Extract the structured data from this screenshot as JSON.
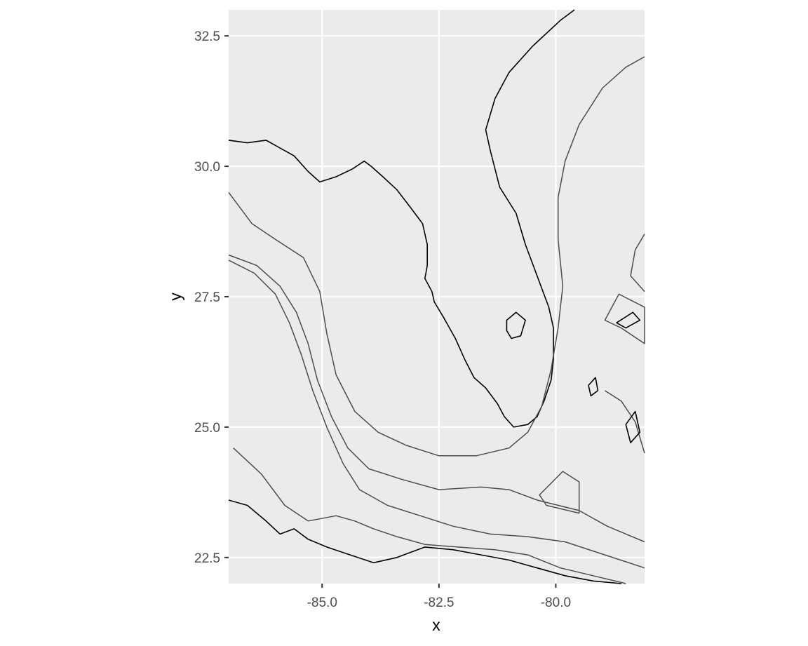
{
  "chart_data": {
    "type": "map-contour",
    "xlabel": "x",
    "ylabel": "y",
    "xlim": [
      -87.0,
      -78.1
    ],
    "ylim": [
      22.0,
      33.0
    ],
    "x_ticks": [
      {
        "value": -85.0,
        "label": "-85.0"
      },
      {
        "value": -82.5,
        "label": "-82.5"
      },
      {
        "value": -80.0,
        "label": "-80.0"
      }
    ],
    "y_ticks": [
      {
        "value": 22.5,
        "label": "22.5"
      },
      {
        "value": 25.0,
        "label": "25.0"
      },
      {
        "value": 27.5,
        "label": "27.5"
      },
      {
        "value": 30.0,
        "label": "30.0"
      },
      {
        "value": 32.5,
        "label": "32.5"
      }
    ],
    "grid": true,
    "colors": {
      "panel": "#ebebeb",
      "gridline": "#ffffff",
      "coastline": "#000000",
      "contour": "#4d4d4d"
    },
    "features": [
      {
        "name": "florida-coastline",
        "kind": "coast",
        "coords": [
          [
            -87.0,
            30.5
          ],
          [
            -86.6,
            30.45
          ],
          [
            -86.2,
            30.5
          ],
          [
            -85.9,
            30.35
          ],
          [
            -85.6,
            30.2
          ],
          [
            -85.3,
            29.9
          ],
          [
            -85.05,
            29.7
          ],
          [
            -84.7,
            29.8
          ],
          [
            -84.35,
            29.95
          ],
          [
            -84.1,
            30.1
          ],
          [
            -83.95,
            30.0
          ],
          [
            -83.7,
            29.8
          ],
          [
            -83.4,
            29.55
          ],
          [
            -83.1,
            29.2
          ],
          [
            -82.85,
            28.9
          ],
          [
            -82.75,
            28.5
          ],
          [
            -82.75,
            28.1
          ],
          [
            -82.8,
            27.85
          ],
          [
            -82.65,
            27.6
          ],
          [
            -82.6,
            27.4
          ],
          [
            -82.4,
            27.1
          ],
          [
            -82.15,
            26.7
          ],
          [
            -81.95,
            26.3
          ],
          [
            -81.75,
            25.95
          ],
          [
            -81.5,
            25.75
          ],
          [
            -81.25,
            25.45
          ],
          [
            -81.1,
            25.2
          ],
          [
            -80.9,
            25.0
          ],
          [
            -80.6,
            25.05
          ],
          [
            -80.4,
            25.2
          ],
          [
            -80.25,
            25.5
          ],
          [
            -80.1,
            25.9
          ],
          [
            -80.05,
            26.3
          ],
          [
            -80.05,
            26.9
          ],
          [
            -80.15,
            27.3
          ],
          [
            -80.4,
            27.9
          ],
          [
            -80.65,
            28.5
          ],
          [
            -80.85,
            29.1
          ],
          [
            -81.2,
            29.6
          ],
          [
            -81.4,
            30.3
          ],
          [
            -81.5,
            30.7
          ],
          [
            -81.3,
            31.3
          ],
          [
            -81.0,
            31.8
          ],
          [
            -80.5,
            32.3
          ],
          [
            -79.9,
            32.8
          ],
          [
            -79.6,
            33.0
          ]
        ]
      },
      {
        "name": "lake-okeechobee",
        "kind": "coast",
        "closed": true,
        "coords": [
          [
            -81.05,
            27.05
          ],
          [
            -80.85,
            27.2
          ],
          [
            -80.65,
            27.05
          ],
          [
            -80.75,
            26.75
          ],
          [
            -80.95,
            26.7
          ],
          [
            -81.05,
            26.85
          ]
        ]
      },
      {
        "name": "gulf-shelf-contour",
        "kind": "contour",
        "coords": [
          [
            -87.0,
            29.5
          ],
          [
            -86.5,
            28.9
          ],
          [
            -86.0,
            28.6
          ],
          [
            -85.4,
            28.25
          ],
          [
            -85.05,
            27.6
          ],
          [
            -84.9,
            26.8
          ],
          [
            -84.7,
            26.0
          ],
          [
            -84.3,
            25.3
          ],
          [
            -83.8,
            24.9
          ],
          [
            -83.2,
            24.65
          ],
          [
            -82.5,
            24.45
          ],
          [
            -81.7,
            24.45
          ],
          [
            -81.0,
            24.6
          ],
          [
            -80.6,
            24.9
          ],
          [
            -80.3,
            25.4
          ],
          [
            -80.1,
            26.1
          ],
          [
            -79.95,
            26.9
          ],
          [
            -79.85,
            27.7
          ],
          [
            -79.95,
            28.6
          ],
          [
            -79.95,
            29.4
          ],
          [
            -79.8,
            30.1
          ],
          [
            -79.5,
            30.8
          ],
          [
            -79.0,
            31.5
          ],
          [
            -78.5,
            31.9
          ],
          [
            -78.1,
            32.1
          ]
        ]
      },
      {
        "name": "gulf-slope-contour",
        "kind": "contour",
        "coords": [
          [
            -87.0,
            28.3
          ],
          [
            -86.4,
            28.1
          ],
          [
            -85.9,
            27.7
          ],
          [
            -85.55,
            27.2
          ],
          [
            -85.3,
            26.6
          ],
          [
            -85.1,
            25.9
          ],
          [
            -84.8,
            25.2
          ],
          [
            -84.45,
            24.6
          ],
          [
            -84.0,
            24.2
          ],
          [
            -83.3,
            24.0
          ],
          [
            -82.5,
            23.8
          ],
          [
            -81.6,
            23.85
          ],
          [
            -81.0,
            23.8
          ],
          [
            -80.4,
            23.6
          ],
          [
            -79.5,
            23.4
          ],
          [
            -78.9,
            23.1
          ],
          [
            -78.1,
            22.8
          ]
        ]
      },
      {
        "name": "gulf-deep-contour",
        "kind": "contour",
        "coords": [
          [
            -87.0,
            28.2
          ],
          [
            -86.45,
            27.95
          ],
          [
            -86.0,
            27.55
          ],
          [
            -85.7,
            27.0
          ],
          [
            -85.45,
            26.4
          ],
          [
            -85.2,
            25.7
          ],
          [
            -84.9,
            25.0
          ],
          [
            -84.55,
            24.3
          ],
          [
            -84.2,
            23.8
          ],
          [
            -83.6,
            23.5
          ],
          [
            -82.9,
            23.3
          ],
          [
            -82.2,
            23.1
          ],
          [
            -81.4,
            22.95
          ],
          [
            -80.6,
            22.9
          ],
          [
            -79.8,
            22.8
          ],
          [
            -78.1,
            22.3
          ]
        ]
      },
      {
        "name": "straits-contour",
        "kind": "contour",
        "coords": [
          [
            -86.9,
            24.6
          ],
          [
            -86.3,
            24.1
          ],
          [
            -85.8,
            23.5
          ],
          [
            -85.3,
            23.2
          ],
          [
            -84.7,
            23.3
          ],
          [
            -84.3,
            23.2
          ],
          [
            -83.9,
            23.05
          ],
          [
            -83.4,
            22.9
          ],
          [
            -82.8,
            22.75
          ],
          [
            -82.1,
            22.7
          ],
          [
            -81.3,
            22.65
          ],
          [
            -80.6,
            22.55
          ],
          [
            -79.9,
            22.3
          ],
          [
            -79.2,
            22.15
          ],
          [
            -78.5,
            22.0
          ]
        ]
      },
      {
        "name": "cuba-coastline",
        "kind": "coast",
        "coords": [
          [
            -87.0,
            23.6
          ],
          [
            -86.6,
            23.5
          ],
          [
            -86.2,
            23.2
          ],
          [
            -85.9,
            22.95
          ],
          [
            -85.6,
            23.05
          ],
          [
            -85.3,
            22.85
          ],
          [
            -84.9,
            22.7
          ],
          [
            -84.4,
            22.55
          ],
          [
            -83.9,
            22.4
          ],
          [
            -83.4,
            22.5
          ],
          [
            -82.8,
            22.7
          ],
          [
            -82.2,
            22.65
          ],
          [
            -81.6,
            22.55
          ],
          [
            -81.0,
            22.45
          ],
          [
            -80.4,
            22.3
          ],
          [
            -79.8,
            22.15
          ],
          [
            -79.2,
            22.05
          ],
          [
            -78.6,
            22.0
          ]
        ]
      },
      {
        "name": "bahamas-bank-contour",
        "kind": "contour",
        "closed": true,
        "coords": [
          [
            -78.65,
            27.55
          ],
          [
            -78.1,
            27.3
          ],
          [
            -78.1,
            26.6
          ],
          [
            -78.6,
            26.9
          ],
          [
            -78.95,
            27.05
          ]
        ]
      },
      {
        "name": "bahamas-bank-contour-south",
        "kind": "contour",
        "coords": [
          [
            -78.95,
            25.7
          ],
          [
            -78.6,
            25.5
          ],
          [
            -78.3,
            25.1
          ],
          [
            -78.1,
            24.5
          ]
        ]
      },
      {
        "name": "east-shelf-contour",
        "kind": "contour",
        "coords": [
          [
            -78.1,
            28.7
          ],
          [
            -78.3,
            28.4
          ],
          [
            -78.4,
            27.9
          ],
          [
            -78.1,
            27.6
          ]
        ]
      },
      {
        "name": "grand-bahama-island",
        "kind": "coast",
        "closed": true,
        "coords": [
          [
            -78.7,
            27.0
          ],
          [
            -78.35,
            27.2
          ],
          [
            -78.2,
            27.05
          ],
          [
            -78.5,
            26.9
          ]
        ]
      },
      {
        "name": "andros-island",
        "kind": "coast",
        "closed": true,
        "coords": [
          [
            -78.5,
            25.05
          ],
          [
            -78.3,
            25.3
          ],
          [
            -78.2,
            24.9
          ],
          [
            -78.4,
            24.7
          ]
        ]
      },
      {
        "name": "bimini-island",
        "kind": "coast",
        "closed": true,
        "coords": [
          [
            -79.3,
            25.8
          ],
          [
            -79.15,
            25.95
          ],
          [
            -79.1,
            25.7
          ],
          [
            -79.25,
            25.6
          ]
        ]
      },
      {
        "name": "cay-sal-bank",
        "kind": "contour",
        "closed": true,
        "coords": [
          [
            -79.85,
            24.15
          ],
          [
            -79.5,
            23.95
          ],
          [
            -79.5,
            23.35
          ],
          [
            -80.2,
            23.5
          ],
          [
            -80.35,
            23.7
          ]
        ]
      }
    ]
  }
}
